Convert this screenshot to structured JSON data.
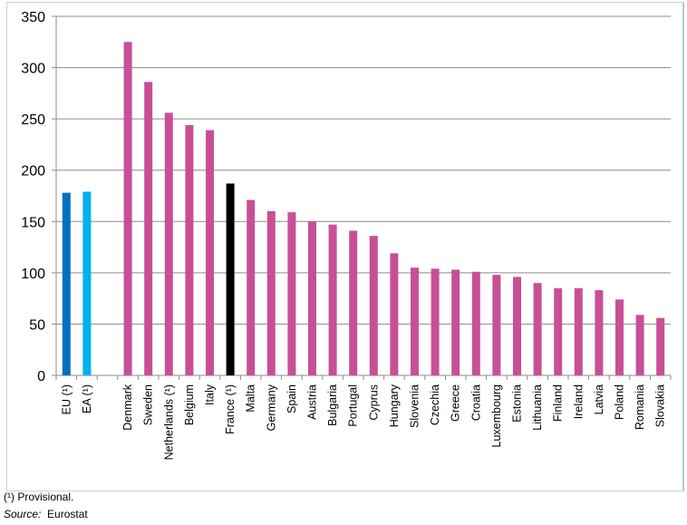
{
  "chart_data": {
    "type": "bar",
    "categories": [
      "EU (¹)",
      "EA (¹)",
      "",
      "Denmark",
      "Sweden",
      "Netherlands (¹)",
      "Belgium",
      "Italy",
      "France (¹)",
      "Malta",
      "Germany",
      "Spain",
      "Austria",
      "Bulgaria",
      "Portugal",
      "Cyprus",
      "Hungary",
      "Slovenia",
      "Czechia",
      "Greece",
      "Croatia",
      "Luxembourg",
      "Estonia",
      "Lithuania",
      "Finland",
      "Ireland",
      "Latvia",
      "Poland",
      "Romania",
      "Slovakia"
    ],
    "values": [
      178,
      179,
      null,
      325,
      286,
      256,
      244,
      239,
      187,
      171,
      160,
      159,
      150,
      147,
      141,
      136,
      119,
      105,
      104,
      103,
      101,
      98,
      96,
      90,
      85,
      85,
      83,
      74,
      59,
      56
    ],
    "colors": {
      "EU (¹)": "#0070c0",
      "EA (¹)": "#00b0f0",
      "France (¹)": "#000000",
      "default": "#c84f96"
    },
    "ylim": [
      0,
      350
    ],
    "yticks": [
      0,
      50,
      100,
      150,
      200,
      250,
      300,
      350
    ],
    "grid": true,
    "title": "",
    "xlabel": "",
    "ylabel": ""
  },
  "footnotes": {
    "provisional": "(¹) Provisional.",
    "source_label": "Source:",
    "source_value": "Eurostat"
  }
}
